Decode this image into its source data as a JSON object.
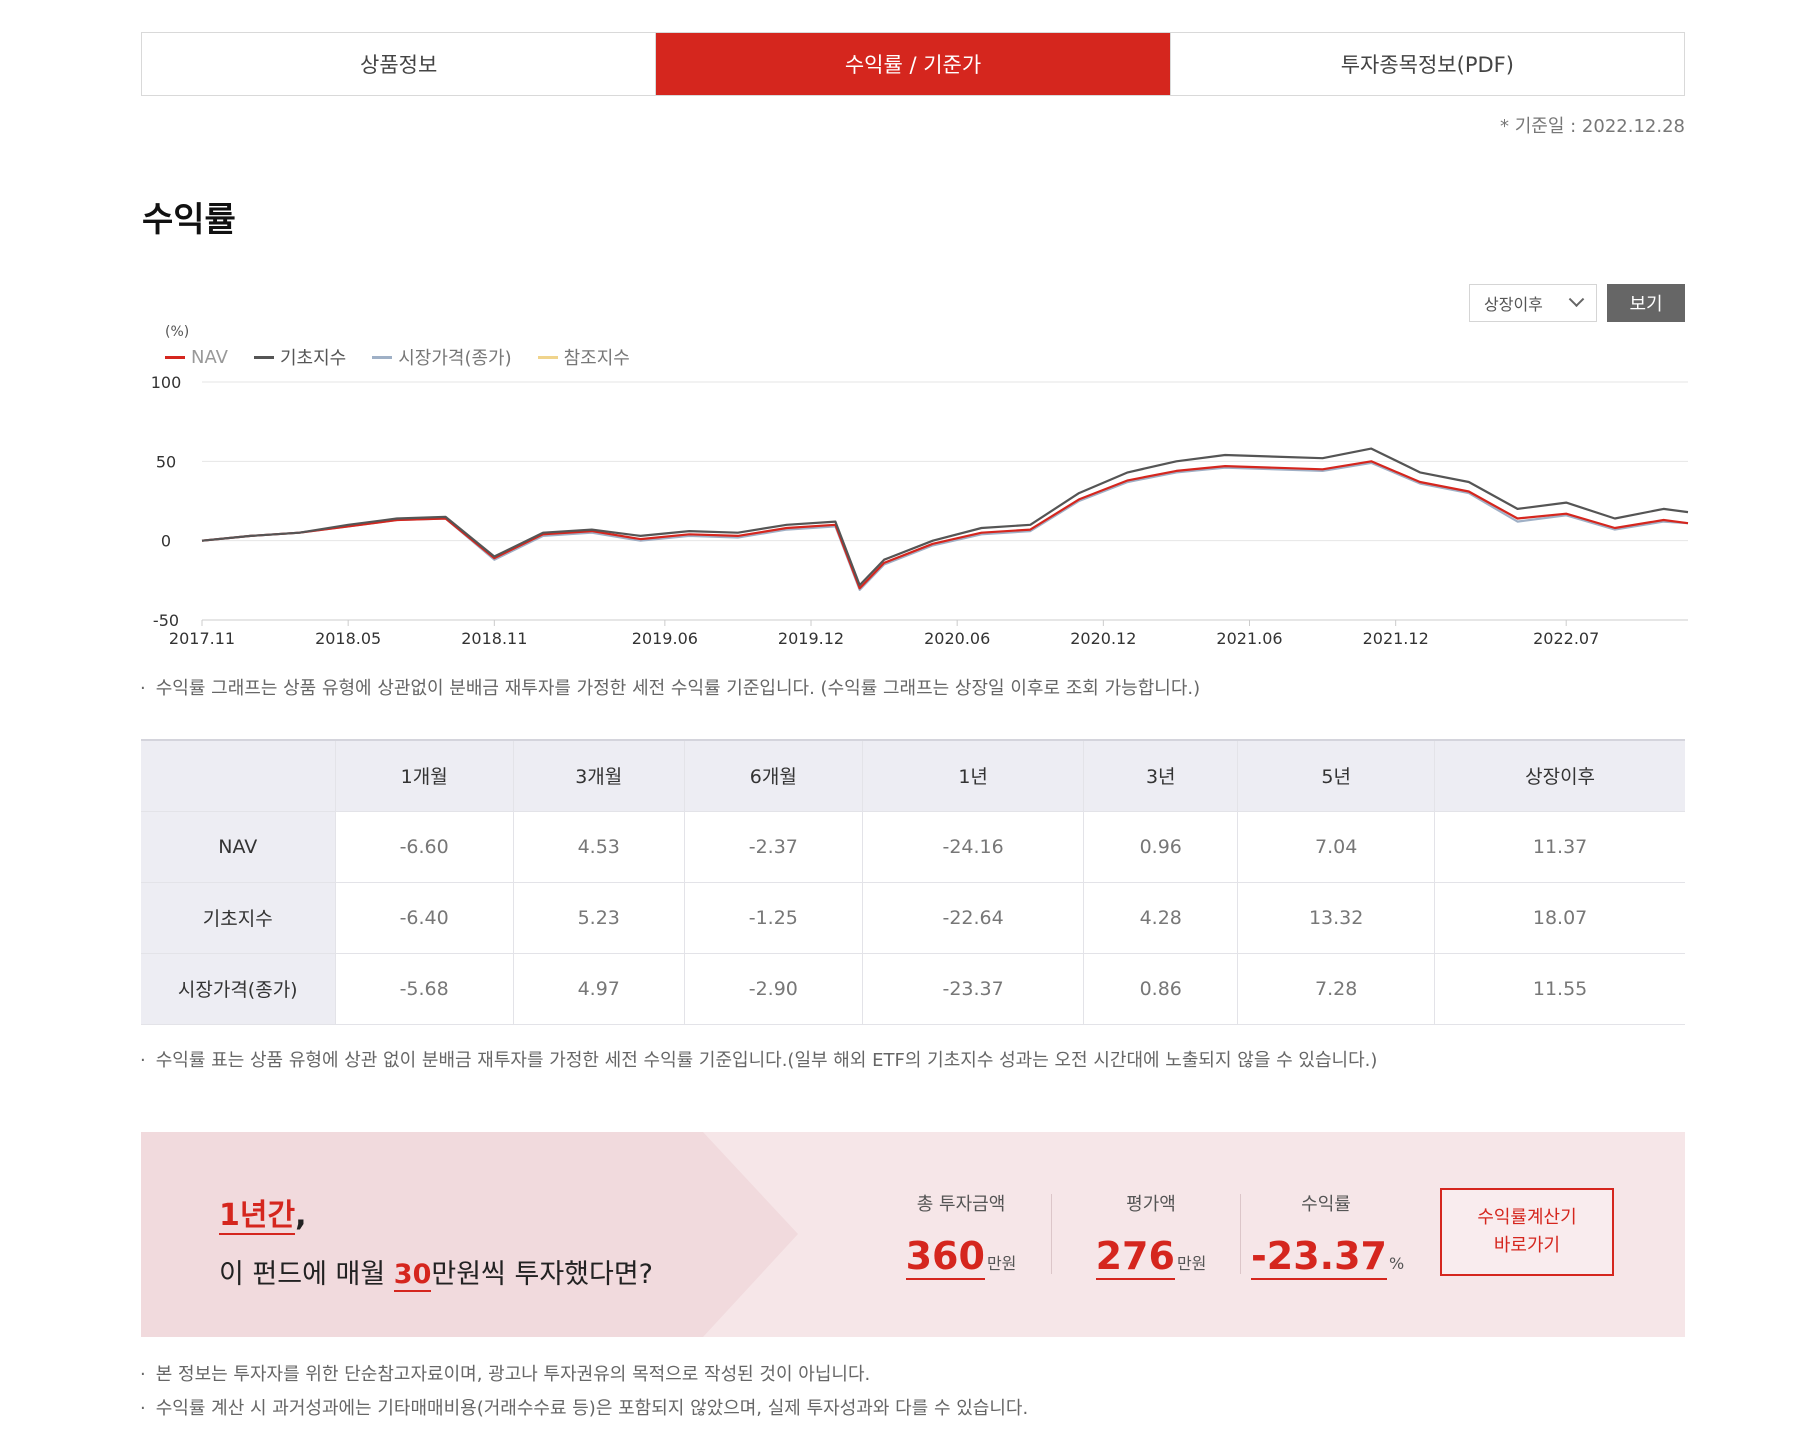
{
  "tabs": [
    {
      "label": "상품정보",
      "active": false
    },
    {
      "label": "수익률 / 기준가",
      "active": true
    },
    {
      "label": "투자종목정보(PDF)",
      "active": false
    }
  ],
  "base_date": "* 기준일 : 2022.12.28",
  "section_title": "수익률",
  "period_select": {
    "value": "상장이후"
  },
  "view_button": "보기",
  "chart_data": {
    "type": "line",
    "ylabel": "(%)",
    "ylim": [
      -50,
      100
    ],
    "yticks": [
      "100",
      "50",
      "0",
      "-50"
    ],
    "ytick_values": [
      100,
      50,
      0,
      -50
    ],
    "x_range": [
      "2017.11",
      "2022.12"
    ],
    "xticks": [
      "2017.11",
      "2018.05",
      "2018.11",
      "2019.06",
      "2019.12",
      "2020.06",
      "2020.12",
      "2021.06",
      "2021.12",
      "2022.07"
    ],
    "grid": true,
    "legend_position": "top-left",
    "series": [
      {
        "name": "NAV",
        "color": "#d5261e",
        "x": [
          "2017.11",
          "2018.01",
          "2018.03",
          "2018.05",
          "2018.07",
          "2018.09",
          "2018.11",
          "2019.01",
          "2019.03",
          "2019.05",
          "2019.07",
          "2019.09",
          "2019.11",
          "2020.01",
          "2020.02",
          "2020.03",
          "2020.05",
          "2020.07",
          "2020.09",
          "2020.11",
          "2021.01",
          "2021.03",
          "2021.05",
          "2021.07",
          "2021.09",
          "2021.11",
          "2022.01",
          "2022.03",
          "2022.05",
          "2022.07",
          "2022.09",
          "2022.11",
          "2022.12"
        ],
        "values": [
          0,
          3,
          5,
          9,
          13,
          14,
          -11,
          4,
          6,
          1,
          4,
          3,
          8,
          10,
          -30,
          -14,
          -2,
          5,
          7,
          26,
          38,
          44,
          47,
          46,
          45,
          50,
          37,
          31,
          14,
          17,
          8,
          13,
          11
        ]
      },
      {
        "name": "기초지수",
        "color": "#555555",
        "x": [
          "2017.11",
          "2018.01",
          "2018.03",
          "2018.05",
          "2018.07",
          "2018.09",
          "2018.11",
          "2019.01",
          "2019.03",
          "2019.05",
          "2019.07",
          "2019.09",
          "2019.11",
          "2020.01",
          "2020.02",
          "2020.03",
          "2020.05",
          "2020.07",
          "2020.09",
          "2020.11",
          "2021.01",
          "2021.03",
          "2021.05",
          "2021.07",
          "2021.09",
          "2021.11",
          "2022.01",
          "2022.03",
          "2022.05",
          "2022.07",
          "2022.09",
          "2022.11",
          "2022.12"
        ],
        "values": [
          0,
          3,
          5,
          10,
          14,
          15,
          -10,
          5,
          7,
          3,
          6,
          5,
          10,
          12,
          -28,
          -12,
          0,
          8,
          10,
          30,
          43,
          50,
          54,
          53,
          52,
          58,
          43,
          37,
          20,
          24,
          14,
          20,
          18
        ]
      },
      {
        "name": "시장가격(종가)",
        "color": "#9fb0c6",
        "x": [
          "2017.11",
          "2018.01",
          "2018.03",
          "2018.05",
          "2018.07",
          "2018.09",
          "2018.11",
          "2019.01",
          "2019.03",
          "2019.05",
          "2019.07",
          "2019.09",
          "2019.11",
          "2020.01",
          "2020.02",
          "2020.03",
          "2020.05",
          "2020.07",
          "2020.09",
          "2020.11",
          "2021.01",
          "2021.03",
          "2021.05",
          "2021.07",
          "2021.09",
          "2021.11",
          "2022.01",
          "2022.03",
          "2022.05",
          "2022.07",
          "2022.09",
          "2022.11",
          "2022.12"
        ],
        "values": [
          0,
          3,
          5,
          9,
          13,
          14,
          -12,
          3,
          5,
          0,
          3,
          2,
          7,
          9,
          -31,
          -15,
          -3,
          4,
          6,
          25,
          37,
          43,
          46,
          45,
          44,
          49,
          36,
          30,
          12,
          16,
          7,
          12,
          11
        ]
      },
      {
        "name": "참조지수",
        "color": "#f0d48c",
        "x": [],
        "values": []
      }
    ]
  },
  "chart_note": "수익률 그래프는 상품 유형에 상관없이 분배금 재투자를 가정한 세전 수익률 기준입니다. (수익률 그래프는 상장일 이후로 조회 가능합니다.)",
  "returns_table": {
    "columns": [
      "1개월",
      "3개월",
      "6개월",
      "1년",
      "3년",
      "5년",
      "상장이후"
    ],
    "rows": [
      {
        "label": "NAV",
        "values": [
          "-6.60",
          "4.53",
          "-2.37",
          "-24.16",
          "0.96",
          "7.04",
          "11.37"
        ]
      },
      {
        "label": "기초지수",
        "values": [
          "-6.40",
          "5.23",
          "-1.25",
          "-22.64",
          "4.28",
          "13.32",
          "18.07"
        ]
      },
      {
        "label": "시장가격(종가)",
        "values": [
          "-5.68",
          "4.97",
          "-2.90",
          "-23.37",
          "0.86",
          "7.28",
          "11.55"
        ]
      }
    ]
  },
  "table_note": "수익률 표는 상품 유형에 상관 없이 분배금 재투자를 가정한 세전 수익률 기준입니다.(일부 해외 ETF의 기초지수 성과는 오전 시간대에 노출되지 않을 수 있습니다.)",
  "simulation": {
    "period": "1년간",
    "period_suffix": ",",
    "question_prefix": "이 펀드에 매월 ",
    "monthly_amount": "30",
    "question_suffix": "만원씩 투자했다면?",
    "stats": [
      {
        "label": "총 투자금액",
        "value": "360",
        "unit": "만원"
      },
      {
        "label": "평가액",
        "value": "276",
        "unit": "만원"
      },
      {
        "label": "수익률",
        "value": "-23.37",
        "unit": "%"
      }
    ],
    "calc_button_line1": "수익률계산기",
    "calc_button_line2": "바로가기"
  },
  "disclaimers": [
    "본 정보는 투자자를 위한 단순참고자료이며, 광고나 투자권유의 목적으로 작성된 것이 아닙니다.",
    "수익률 계산 시 과거성과에는 기타매매비용(거래수수료 등)은 포함되지 않았으며, 실제 투자성과와 다를 수 있습니다."
  ],
  "bullet": "·"
}
